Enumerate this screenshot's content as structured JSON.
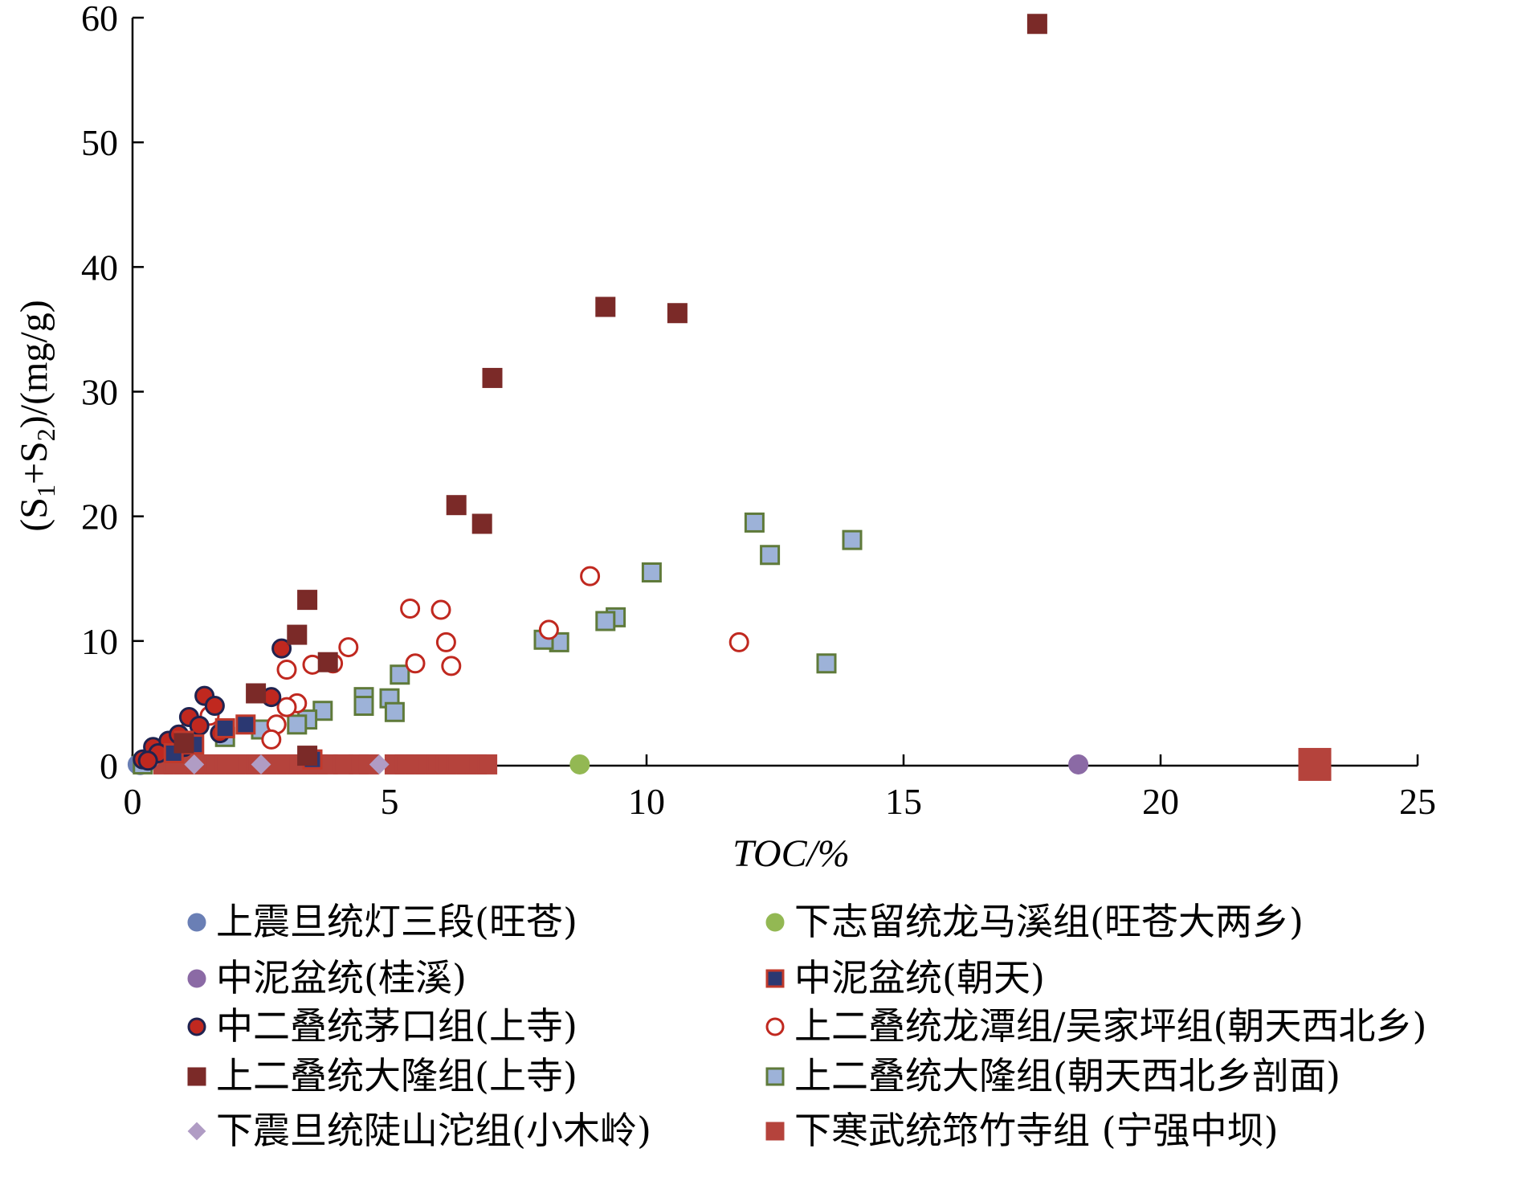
{
  "chart_data": {
    "type": "scatter",
    "xlabel": "TOC/%",
    "ylabel_parts": [
      "(S",
      "1",
      "+S",
      "2",
      ")/(mg/g)"
    ],
    "xlim": [
      0,
      25
    ],
    "ylim": [
      0,
      60
    ],
    "xticks": [
      0,
      5,
      10,
      15,
      20,
      25
    ],
    "yticks": [
      0,
      10,
      20,
      30,
      40,
      50,
      60
    ],
    "xtick_labels": [
      "0",
      "5",
      "10",
      "15",
      "20",
      "25"
    ],
    "ytick_labels": [
      "0",
      "10",
      "20",
      "30",
      "40",
      "50",
      "60"
    ],
    "grid": false,
    "legend_position": "bottom",
    "series": [
      {
        "name": "上震旦统灯三段(旺苍)",
        "marker": "circle",
        "size": "small",
        "fill": "#6a7fb5",
        "stroke": "#6a7fb5",
        "points": [
          [
            0.1,
            0.1
          ],
          [
            0.15,
            0.05
          ],
          [
            0.2,
            0.1
          ],
          [
            0.25,
            0.15
          ]
        ]
      },
      {
        "name": "下志留统龙马溪组(旺苍大两乡)",
        "marker": "circle",
        "size": "small",
        "fill": "#93b853",
        "stroke": "#93b853",
        "points": [
          [
            8.7,
            0.1
          ]
        ]
      },
      {
        "name": "中泥盆统(桂溪)",
        "marker": "circle",
        "size": "small",
        "fill": "#8b6aa5",
        "stroke": "#8b6aa5",
        "points": [
          [
            18.4,
            0.1
          ]
        ]
      },
      {
        "name": "中泥盆统(朝天)",
        "marker": "square",
        "size": "small",
        "fill": "#2b3872",
        "stroke": "#c0392b",
        "points": [
          [
            2.2,
            3.3
          ],
          [
            1.8,
            3.0
          ],
          [
            1.2,
            1.7
          ],
          [
            0.8,
            1.0
          ],
          [
            1.0,
            2.0
          ],
          [
            3.5,
            0.5
          ]
        ]
      },
      {
        "name": "中二叠统茅口组(上寺)",
        "marker": "circle",
        "size": "small",
        "fill": "#c0281f",
        "stroke": "#1f2350",
        "points": [
          [
            0.2,
            0.5
          ],
          [
            0.4,
            1.5
          ],
          [
            0.7,
            2.0
          ],
          [
            0.9,
            2.5
          ],
          [
            1.1,
            3.9
          ],
          [
            1.3,
            3.2
          ],
          [
            1.4,
            5.6
          ],
          [
            1.6,
            4.8
          ],
          [
            1.7,
            2.6
          ],
          [
            2.7,
            5.5
          ],
          [
            2.9,
            9.4
          ],
          [
            0.5,
            1.0
          ],
          [
            0.3,
            0.4
          ],
          [
            1.0,
            1.5
          ]
        ]
      },
      {
        "name": "上二叠统龙潭组/吴家坪组(朝天西北乡)",
        "marker": "circle-open",
        "size": "small",
        "fill": "#ffffff",
        "stroke": "#c0281f",
        "points": [
          [
            5.4,
            12.6
          ],
          [
            6.0,
            12.5
          ],
          [
            6.1,
            9.9
          ],
          [
            6.2,
            8.0
          ],
          [
            5.5,
            8.2
          ],
          [
            4.2,
            9.5
          ],
          [
            3.5,
            8.1
          ],
          [
            3.9,
            8.2
          ],
          [
            3.0,
            7.7
          ],
          [
            3.2,
            5.0
          ],
          [
            3.0,
            4.7
          ],
          [
            2.8,
            3.3
          ],
          [
            2.7,
            2.1
          ],
          [
            1.1,
            2.8
          ],
          [
            8.1,
            10.9
          ],
          [
            8.9,
            15.2
          ],
          [
            11.8,
            9.9
          ],
          [
            0.8,
            1.8
          ],
          [
            1.5,
            4.0
          ],
          [
            0.6,
            1.2
          ]
        ]
      },
      {
        "name": "上二叠统大隆组(上寺)",
        "marker": "square",
        "size": "small",
        "fill": "#7b2a28",
        "stroke": "#7b2a28",
        "points": [
          [
            17.6,
            59.5
          ],
          [
            9.2,
            36.8
          ],
          [
            10.6,
            36.3
          ],
          [
            7.0,
            31.1
          ],
          [
            6.3,
            20.9
          ],
          [
            6.8,
            19.4
          ],
          [
            3.4,
            13.3
          ],
          [
            3.2,
            10.5
          ],
          [
            3.8,
            8.3
          ],
          [
            2.4,
            5.8
          ],
          [
            1.0,
            1.8
          ],
          [
            3.4,
            0.8
          ]
        ]
      },
      {
        "name": "上二叠统大隆组(朝天西北乡剖面)",
        "marker": "square",
        "size": "small",
        "fill": "#9db2d8",
        "stroke": "#5f7a3a",
        "points": [
          [
            12.1,
            19.5
          ],
          [
            14.0,
            18.1
          ],
          [
            12.4,
            16.9
          ],
          [
            10.1,
            15.5
          ],
          [
            9.4,
            11.9
          ],
          [
            9.2,
            11.6
          ],
          [
            8.3,
            9.9
          ],
          [
            8.0,
            10.1
          ],
          [
            13.5,
            8.2
          ],
          [
            5.2,
            7.3
          ],
          [
            4.5,
            5.5
          ],
          [
            5.0,
            5.4
          ],
          [
            4.5,
            4.8
          ],
          [
            5.1,
            4.3
          ],
          [
            3.7,
            4.4
          ],
          [
            3.4,
            3.7
          ],
          [
            3.2,
            3.3
          ],
          [
            2.5,
            2.9
          ],
          [
            1.8,
            2.3
          ],
          [
            0.2,
            0.1
          ]
        ]
      },
      {
        "name": "下震旦统陡山沱组(小木岭)",
        "marker": "diamond",
        "size": "small",
        "fill": "#b09cc4",
        "stroke": "#b09cc4",
        "points": [
          [
            0.3,
            0.1
          ],
          [
            4.8,
            0.1
          ],
          [
            2.5,
            0.1
          ],
          [
            1.2,
            0.1
          ]
        ]
      },
      {
        "name": "下寒武统筇竹寺组 (宁强中坝)",
        "marker": "square",
        "size": "small",
        "fill": "#b5433c",
        "stroke": "#b5433c",
        "points": [
          [
            0.6,
            0.1
          ],
          [
            0.8,
            0.1
          ],
          [
            1.0,
            0.1
          ],
          [
            1.2,
            0.1
          ],
          [
            1.4,
            0.1
          ],
          [
            1.6,
            0.1
          ],
          [
            1.8,
            0.1
          ],
          [
            2.0,
            0.1
          ],
          [
            2.2,
            0.1
          ],
          [
            2.4,
            0.1
          ],
          [
            2.6,
            0.1
          ],
          [
            2.8,
            0.1
          ],
          [
            3.0,
            0.1
          ],
          [
            3.2,
            0.1
          ],
          [
            3.4,
            0.1
          ],
          [
            3.6,
            0.1
          ],
          [
            3.8,
            0.1
          ],
          [
            4.1,
            0.1
          ],
          [
            4.4,
            0.1
          ],
          [
            4.6,
            0.1
          ],
          [
            5.1,
            0.1
          ],
          [
            5.3,
            0.1
          ],
          [
            5.5,
            0.1
          ],
          [
            5.7,
            0.1
          ],
          [
            5.9,
            0.1
          ],
          [
            6.1,
            0.1
          ],
          [
            6.3,
            0.1
          ],
          [
            6.5,
            0.1
          ],
          [
            6.7,
            0.1
          ],
          [
            6.9,
            0.1
          ]
        ],
        "big_points": [
          [
            23.0,
            0.1
          ]
        ]
      }
    ]
  }
}
